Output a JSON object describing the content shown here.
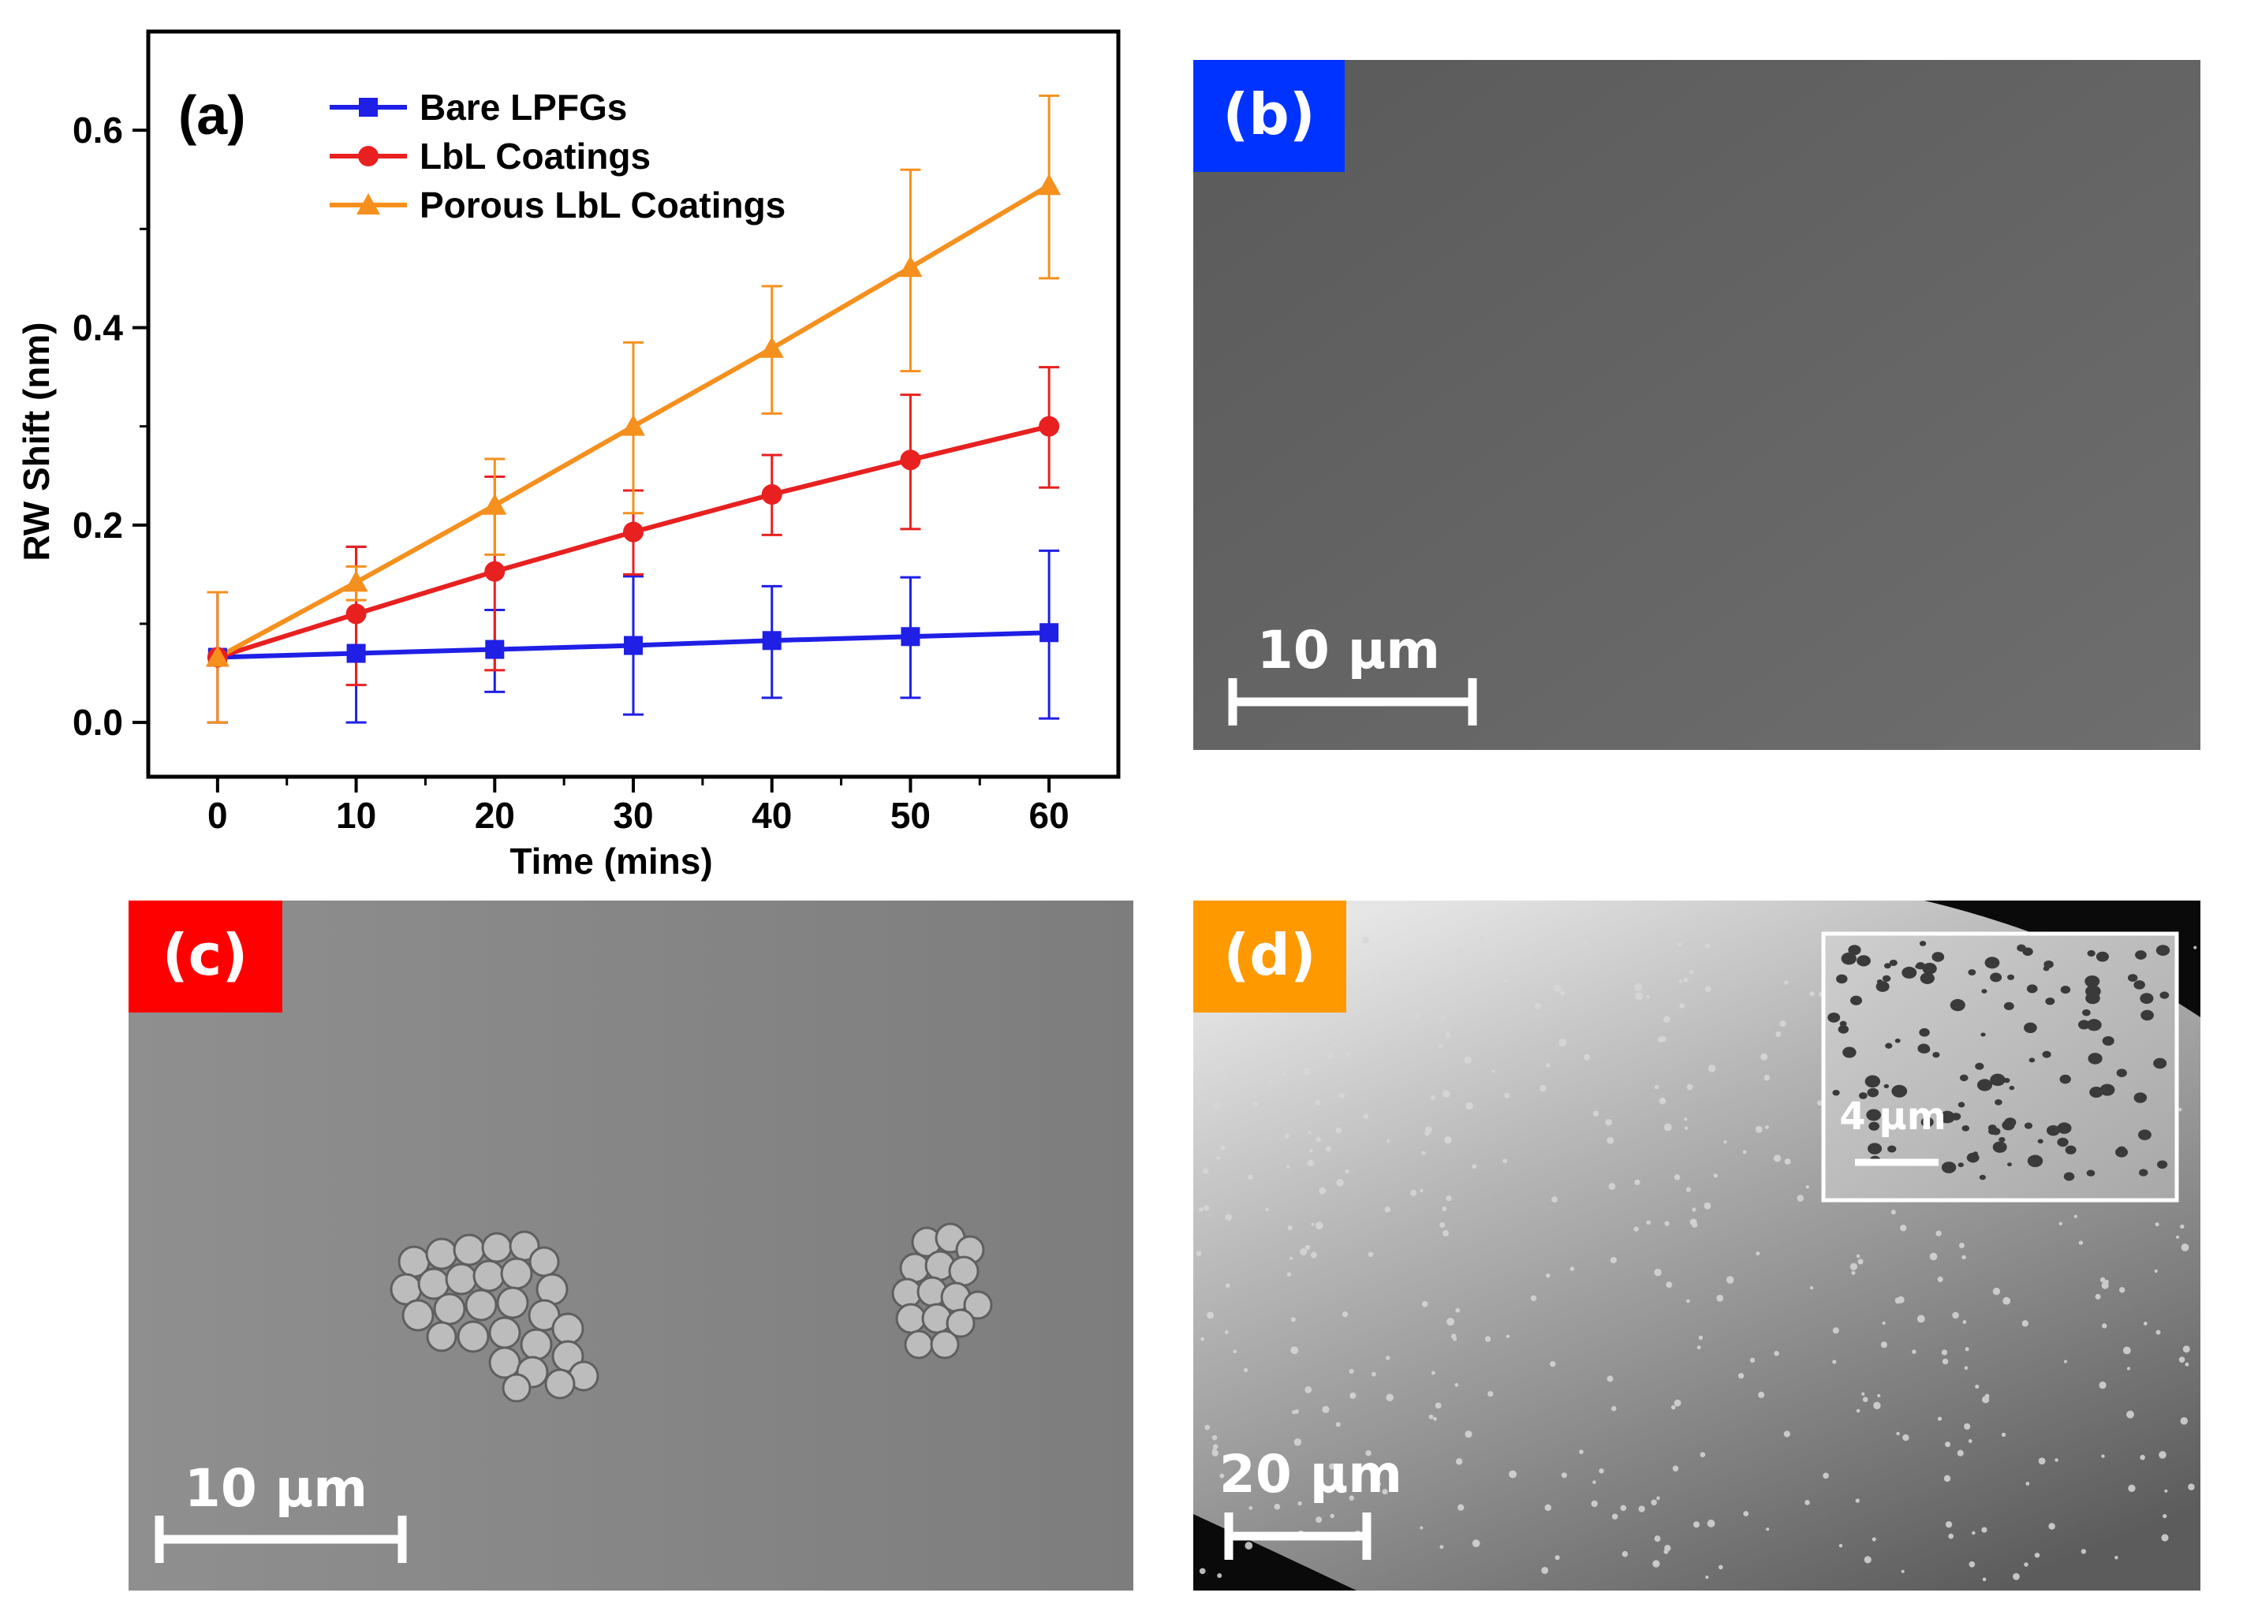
{
  "chart_data": {
    "type": "line",
    "panel_label": "(a)",
    "xlabel": "Time (mins)",
    "ylabel": "RW Shift (nm)",
    "x": [
      0,
      10,
      20,
      30,
      40,
      50,
      60
    ],
    "x_ticks": [
      "0",
      "10",
      "20",
      "30",
      "40",
      "50",
      "60"
    ],
    "y_ticks": [
      "0.0",
      "0.2",
      "0.4",
      "0.6"
    ],
    "xlim": [
      -5,
      65
    ],
    "ylim": [
      -0.055,
      0.7
    ],
    "grid": false,
    "legend_position": "top-left",
    "series": [
      {
        "name": "Bare LPFGs",
        "marker": "square",
        "color": "#1f1fe6",
        "values": [
          0.066,
          0.07,
          0.074,
          0.078,
          0.083,
          0.087,
          0.091
        ],
        "err_low": [
          0.066,
          0.07,
          0.043,
          0.07,
          0.058,
          0.062,
          0.087
        ],
        "err_high": [
          0.066,
          0.108,
          0.04,
          0.07,
          0.055,
          0.06,
          0.083
        ]
      },
      {
        "name": "LbL Coatings",
        "marker": "circle",
        "color": "#e82020",
        "values": [
          0.066,
          0.11,
          0.153,
          0.193,
          0.231,
          0.266,
          0.3
        ],
        "err_low": [
          0.066,
          0.072,
          0.1,
          0.043,
          0.041,
          0.07,
          0.062
        ],
        "err_high": [
          0.066,
          0.068,
          0.096,
          0.042,
          0.04,
          0.066,
          0.06
        ]
      },
      {
        "name": "Porous LbL Coatings",
        "marker": "triangle",
        "color": "#f5901e",
        "values": [
          0.066,
          0.142,
          0.22,
          0.3,
          0.379,
          0.461,
          0.544
        ],
        "err_low": [
          0.066,
          0.018,
          0.05,
          0.088,
          0.066,
          0.105,
          0.094
        ],
        "err_high": [
          0.066,
          0.016,
          0.047,
          0.085,
          0.063,
          0.099,
          0.091
        ]
      }
    ]
  },
  "panels": {
    "b": {
      "label": "(b)",
      "badge_color": "#0033ff",
      "scale_label": "10 µm"
    },
    "c": {
      "label": "(c)",
      "badge_color": "#ff0000",
      "scale_label": "10 µm"
    },
    "d": {
      "label": "(d)",
      "badge_color": "#ff9900",
      "scale_label": "20 µm",
      "inset_scale_label": "4 µm"
    }
  }
}
